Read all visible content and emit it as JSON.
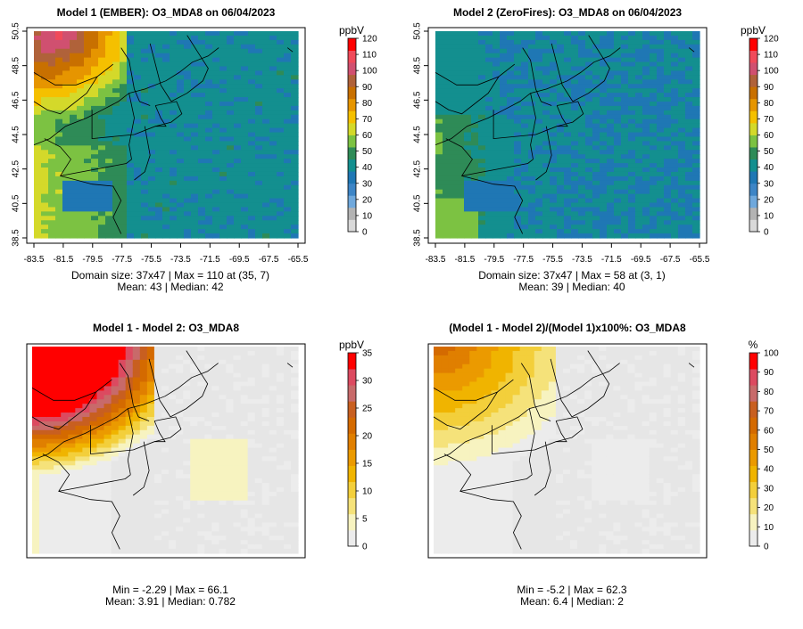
{
  "colorscales": {
    "ozone": [
      "#d9d9d9",
      "#b3b3b3",
      "#6fa8dc",
      "#3d85c6",
      "#1f77b4",
      "#138f8f",
      "#2e8b57",
      "#7cc242",
      "#d4d92a",
      "#f5c000",
      "#e69500",
      "#c87000",
      "#b0623a",
      "#d05070",
      "#f04a5a",
      "#ff0000"
    ],
    "diff": [
      "#ececec",
      "#f7f3c0",
      "#f5e27a",
      "#f3cf3b",
      "#f0b400",
      "#eb9a00",
      "#e07f00",
      "#d46a00",
      "#c85f20",
      "#c86a6a",
      "#dc4a60",
      "#ff0000"
    ]
  },
  "map_colors": {
    "ocean": "#1b7ab5",
    "ocean_right": "#1b7ab5",
    "diff_bg": "#e6e6e6"
  },
  "charts": [
    {
      "type": "heatmap",
      "title": "Model 1 (EMBER): O3_MDA8 on 06/04/2023",
      "unit_label": "ppbV",
      "x_ticks": [
        "-83.5",
        "-81.5",
        "-79.5",
        "-77.5",
        "-75.5",
        "-73.5",
        "-71.5",
        "-69.5",
        "-67.5",
        "-65.5"
      ],
      "y_ticks": [
        "38.5",
        "40.5",
        "42.5",
        "44.5",
        "46.5",
        "48.5",
        "50.5"
      ],
      "colorbar_ticks": [
        "0",
        "10",
        "20",
        "30",
        "40",
        "50",
        "60",
        "70",
        "80",
        "90",
        "100",
        "110",
        "120"
      ],
      "colorbar_range": [
        0,
        120
      ],
      "scale": "ozone",
      "footer_line1": "Domain size: 37x47 | Max = 110 at (35, 7)",
      "footer_line2": "Mean: 43 |  Median: 42",
      "stats": {
        "domain_size": "37x47",
        "max": 110,
        "max_at": "(35, 7)",
        "mean": 43,
        "median": 42
      }
    },
    {
      "type": "heatmap",
      "title": "Model 2 (ZeroFires): O3_MDA8 on 06/04/2023",
      "unit_label": "ppbV",
      "x_ticks": [
        "-83.5",
        "-81.5",
        "-79.5",
        "-77.5",
        "-75.5",
        "-73.5",
        "-71.5",
        "-69.5",
        "-67.5",
        "-65.5"
      ],
      "y_ticks": [
        "38.5",
        "40.5",
        "42.5",
        "44.5",
        "46.5",
        "48.5",
        "50.5"
      ],
      "colorbar_ticks": [
        "0",
        "10",
        "20",
        "30",
        "40",
        "50",
        "60",
        "70",
        "80",
        "90",
        "100",
        "110",
        "120"
      ],
      "colorbar_range": [
        0,
        120
      ],
      "scale": "ozone",
      "footer_line1": "Domain size: 37x47 | Max = 58 at (3, 1)",
      "footer_line2": "Mean: 39 |  Median: 40",
      "stats": {
        "domain_size": "37x47",
        "max": 58,
        "max_at": "(3, 1)",
        "mean": 39,
        "median": 40
      }
    },
    {
      "type": "heatmap",
      "title": "Model 1 - Model 2: O3_MDA8",
      "unit_label": "ppbV",
      "x_ticks": [],
      "y_ticks": [],
      "colorbar_ticks": [
        "0",
        "5",
        "10",
        "15",
        "20",
        "25",
        "30",
        "35"
      ],
      "colorbar_range": [
        0,
        35
      ],
      "scale": "diff",
      "footer_line1": "Min = -2.29 | Max = 66.1",
      "footer_line2": "Mean: 3.91 |  Median: 0.782",
      "stats": {
        "min": -2.29,
        "max": 66.1,
        "mean": 3.91,
        "median": 0.782
      }
    },
    {
      "type": "heatmap",
      "title": "(Model 1 - Model 2)/(Model 1)x100%: O3_MDA8",
      "unit_label": "%",
      "x_ticks": [],
      "y_ticks": [],
      "colorbar_ticks": [
        "0",
        "10",
        "20",
        "30",
        "40",
        "50",
        "60",
        "70",
        "80",
        "90",
        "100"
      ],
      "colorbar_range": [
        0,
        100
      ],
      "scale": "diff",
      "footer_line1": "Min = -5.2 | Max = 62.3",
      "footer_line2": "Mean: 6.4 |  Median: 2",
      "stats": {
        "min": -5.2,
        "max": 62.3,
        "mean": 6.4,
        "median": 2
      }
    }
  ]
}
